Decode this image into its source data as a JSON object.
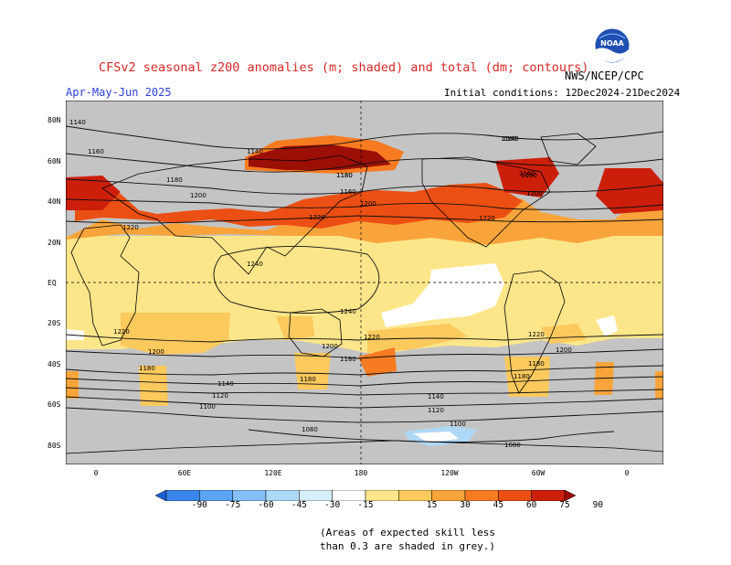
{
  "header": {
    "title": "CFSv2 seasonal z200 anomalies (m; shaded) and total (dm; contours)",
    "period": "Apr-May-Jun 2025",
    "initial_conditions": "Initial conditions: 12Dec2024-21Dec2024",
    "agency": "NWS/NCEP/CPC",
    "logo_text": "NOAA"
  },
  "axes": {
    "lat_labels": [
      "80N",
      "60N",
      "40N",
      "20N",
      "EQ",
      "20S",
      "40S",
      "60S",
      "80S"
    ],
    "lon_labels": [
      "0",
      "60E",
      "120E",
      "180",
      "120W",
      "60W",
      "0"
    ]
  },
  "contour_labels": [
    "1140",
    "1160",
    "1140",
    "1180",
    "1160",
    "1180",
    "1200",
    "1180",
    "1160",
    "1200",
    "1220",
    "1220",
    "1200",
    "1220",
    "1240",
    "1240",
    "1220",
    "1220",
    "1200",
    "1200",
    "1220",
    "1180",
    "1200",
    "1180",
    "1180",
    "1180",
    "1180",
    "1140",
    "1120",
    "1120",
    "1140",
    "1100",
    "1080",
    "1100",
    "1080",
    "1140",
    "1160",
    "1180"
  ],
  "colorbar": {
    "labels": [
      "-90",
      "-75",
      "-60",
      "-45",
      "-30",
      "-15",
      "15",
      "30",
      "45",
      "60",
      "75",
      "90"
    ],
    "colors": [
      "#1e5fd8",
      "#3a86ec",
      "#5ca4f4",
      "#84c0f7",
      "#aed8f7",
      "#d6f0fb",
      "#ffffff",
      "#fde68a",
      "#fcc95d",
      "#f9a43a",
      "#f67b21",
      "#ec4f13",
      "#cc1f0a",
      "#9c0f05"
    ],
    "grey_color": "#c4c4c4"
  },
  "note": {
    "line1": "(Areas of expected skill less",
    "line2": "than 0.3 are shaded in grey.)"
  }
}
